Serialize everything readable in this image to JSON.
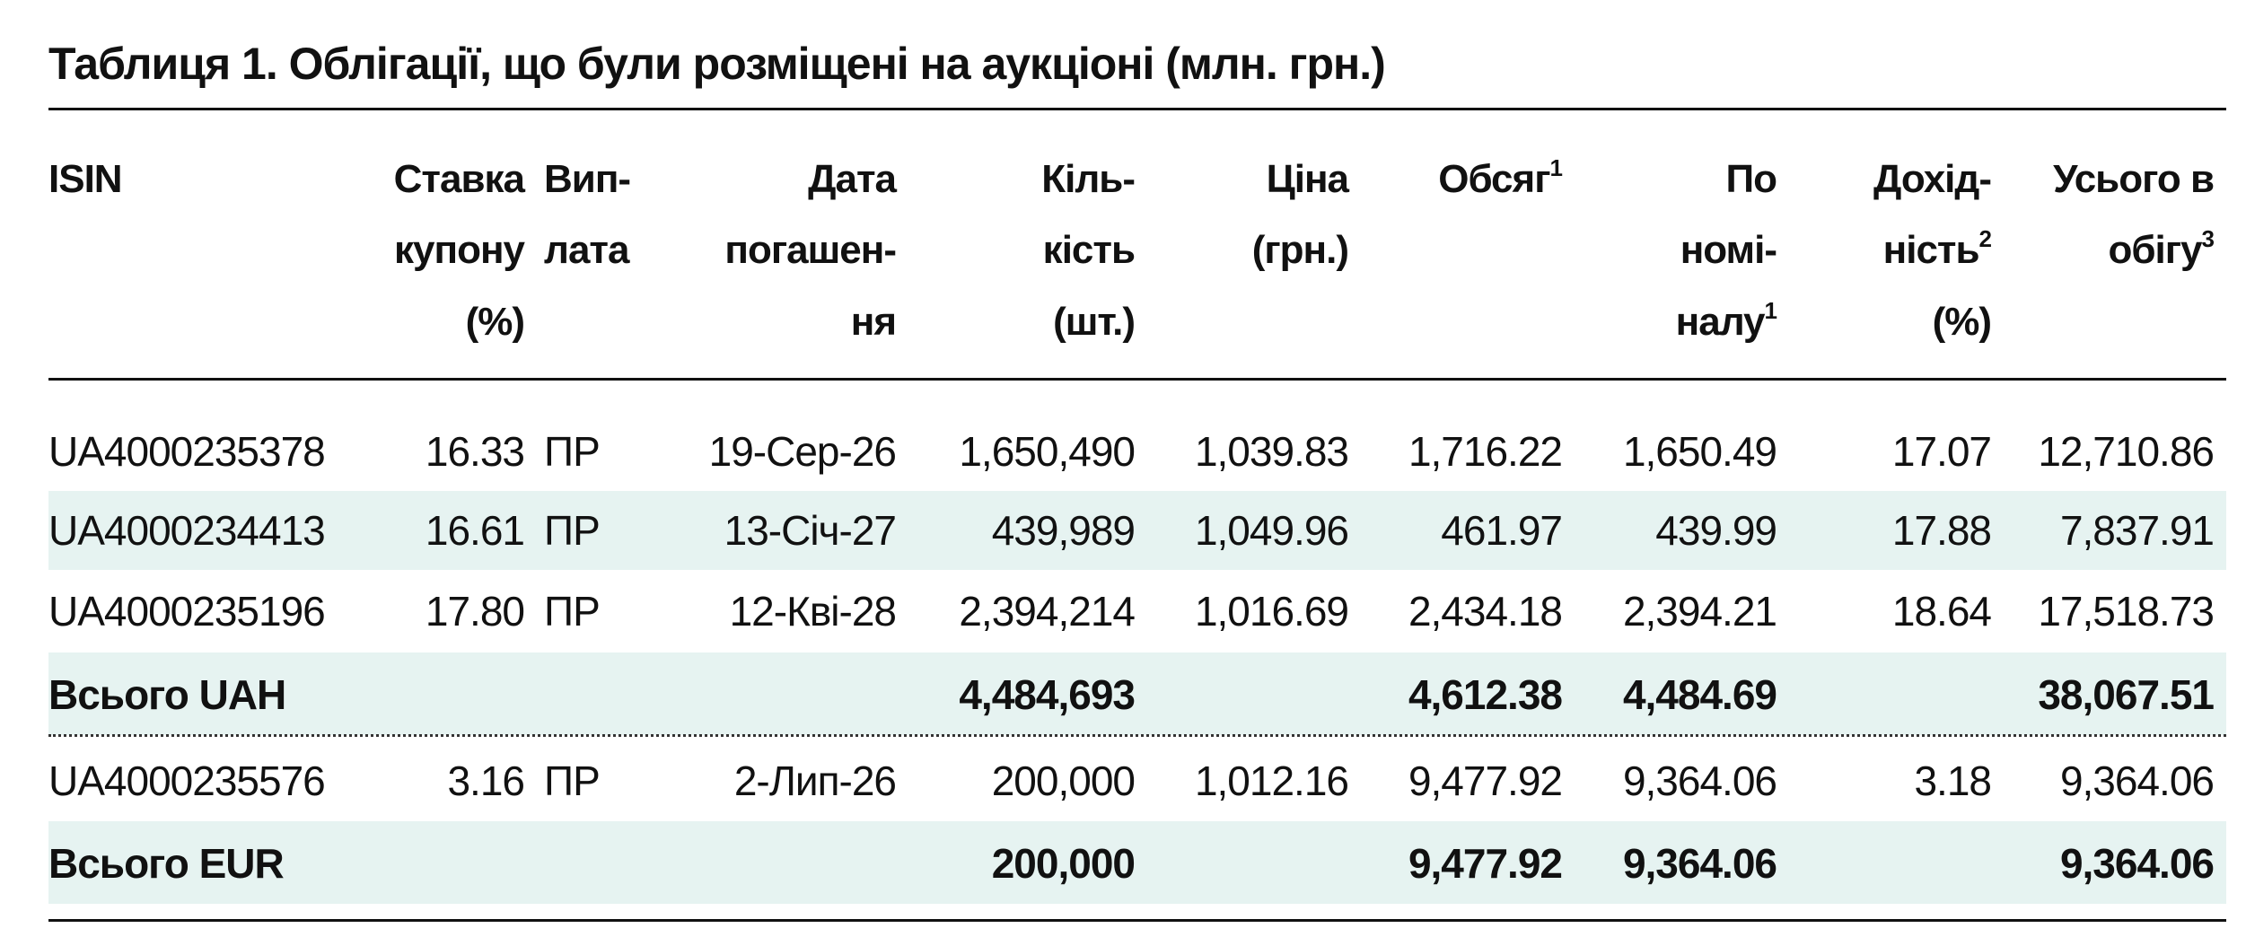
{
  "title": "Таблиця 1. Облігації, що були розміщені на аукціоні (млн. грн.)",
  "table": {
    "headers": [
      {
        "lines": [
          "ISIN"
        ]
      },
      {
        "lines": [
          "Ставка",
          "купону",
          "(%)"
        ]
      },
      {
        "lines": [
          "Вип-",
          "лата"
        ]
      },
      {
        "lines": [
          "Дата",
          "погашен-",
          "ня"
        ]
      },
      {
        "lines": [
          "Кіль-",
          "кість",
          "(шт.)"
        ]
      },
      {
        "lines": [
          "Ціна",
          "(грн.)"
        ]
      },
      {
        "lines": [
          {
            "text": "Обсяг",
            "sup": "1"
          }
        ]
      },
      {
        "lines": [
          "По",
          "номі-",
          {
            "text": "налу",
            "sup": "1"
          }
        ]
      },
      {
        "lines": [
          "Дохід-",
          {
            "text": "ність",
            "sup": "2"
          },
          "(%)"
        ]
      },
      {
        "lines": [
          "Усього в",
          {
            "text": "обігу",
            "sup": "3"
          }
        ]
      }
    ],
    "rows": [
      [
        "UA4000235378",
        "16.33",
        "ПР",
        "19-Сер-26",
        "1,650,490",
        "1,039.83",
        "1,716.22",
        "1,650.49",
        "17.07",
        "12,710.86"
      ],
      [
        "UA4000234413",
        "16.61",
        "ПР",
        "13-Січ-27",
        "439,989",
        "1,049.96",
        "461.97",
        "439.99",
        "17.88",
        "7,837.91"
      ],
      [
        "UA4000235196",
        "17.80",
        "ПР",
        "12-Кві-28",
        "2,394,214",
        "1,016.69",
        "2,434.18",
        "2,394.21",
        "18.64",
        "17,518.73"
      ],
      [
        "Всього UAH",
        null,
        null,
        null,
        "4,484,693",
        null,
        "4,612.38",
        "4,484.69",
        null,
        "38,067.51"
      ],
      [
        "UA4000235576",
        "3.16",
        "ПР",
        "2-Лип-26",
        "200,000",
        "1,012.16",
        "9,477.92",
        "9,364.06",
        "3.18",
        "9,364.06"
      ],
      [
        "Всього EUR",
        null,
        null,
        null,
        "200,000",
        null,
        "9,477.92",
        "9,364.06",
        null,
        "9,364.06"
      ]
    ]
  }
}
